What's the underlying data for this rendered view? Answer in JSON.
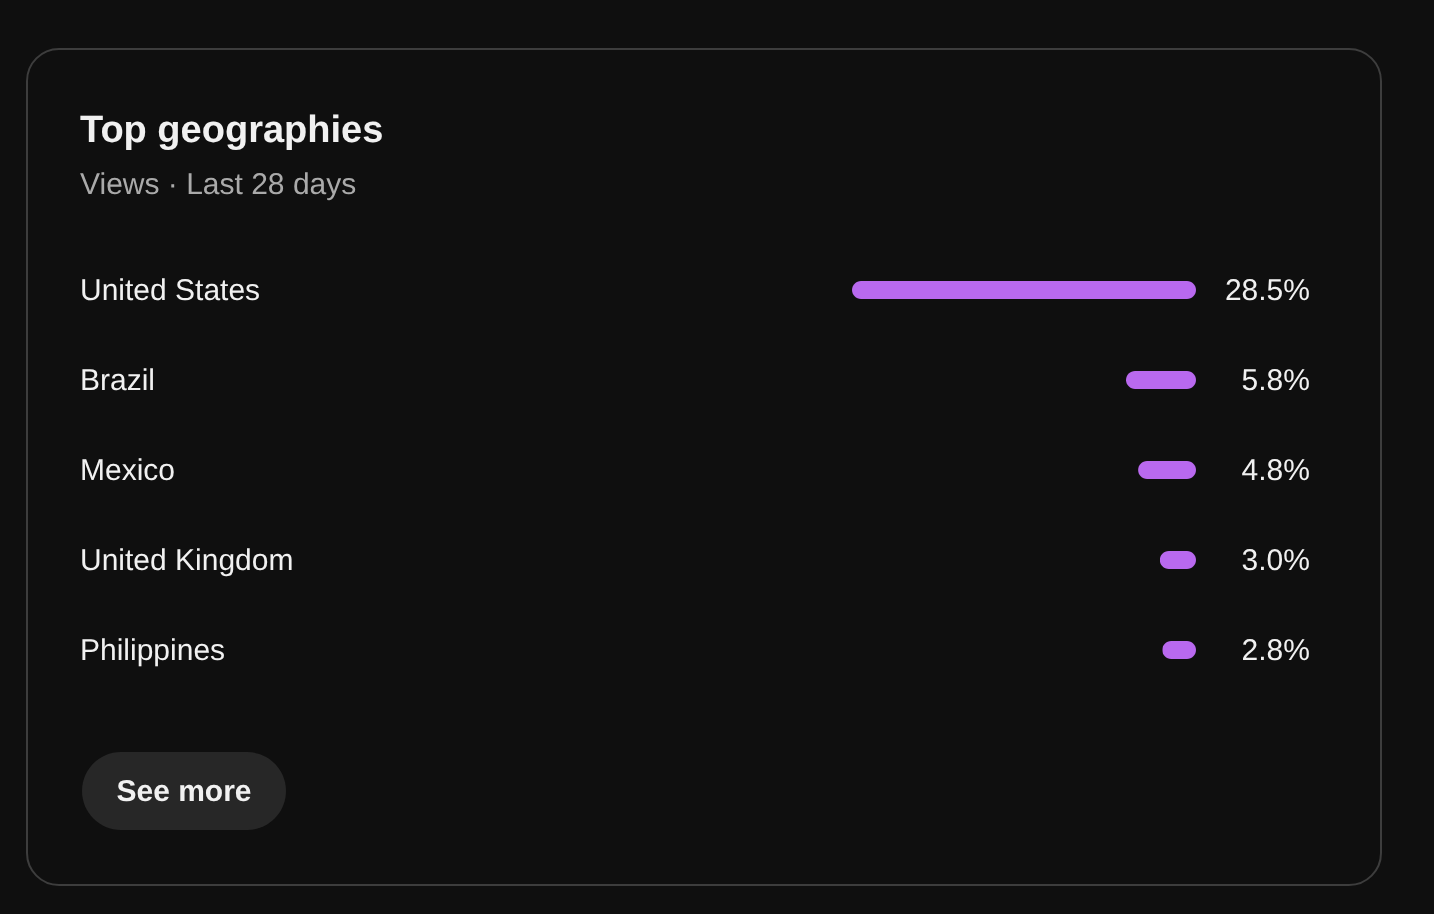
{
  "chart_data": {
    "type": "bar",
    "orientation": "horizontal",
    "title": "Top geographies",
    "subtitle": "Views · Last 28 days",
    "categories": [
      "United States",
      "Brazil",
      "Mexico",
      "United Kingdom",
      "Philippines"
    ],
    "values": [
      28.5,
      5.8,
      4.8,
      3.0,
      2.8
    ],
    "color": "#b969ef",
    "value_labels": [
      "28.5%",
      "5.8%",
      "4.8%",
      "3.0%",
      "2.8%"
    ],
    "tick_labels": "y",
    "annotations": [
      "See more"
    ]
  }
}
